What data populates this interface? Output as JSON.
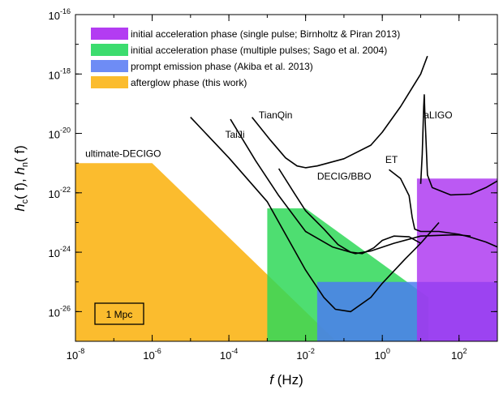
{
  "chart_data": {
    "type": "area",
    "xlabel": {
      "var": "f",
      "unit": " (Hz)"
    },
    "ylabel": {
      "a": "h",
      "a_sub": "c",
      "b": "h",
      "b_sub": "n",
      "arg": "( f)"
    },
    "x_scale": "log",
    "y_scale": "log",
    "xlim": [
      1e-08,
      1000
    ],
    "ylim": [
      1e-27,
      1e-16
    ],
    "x_ticks": [
      {
        "base": "10",
        "exp": "-8",
        "value": 1e-08
      },
      {
        "base": "10",
        "exp": "-6",
        "value": 1e-06
      },
      {
        "base": "10",
        "exp": "-4",
        "value": 0.0001
      },
      {
        "base": "10",
        "exp": "-2",
        "value": 0.01
      },
      {
        "base": "10",
        "exp": "0",
        "value": 1
      },
      {
        "base": "10",
        "exp": "2",
        "value": 100
      }
    ],
    "y_ticks": [
      {
        "base": "10",
        "exp": "-16",
        "value": 1e-16
      },
      {
        "base": "10",
        "exp": "-18",
        "value": 1e-18
      },
      {
        "base": "10",
        "exp": "-20",
        "value": 1e-20
      },
      {
        "base": "10",
        "exp": "-22",
        "value": 1e-22
      },
      {
        "base": "10",
        "exp": "-24",
        "value": 1e-24
      },
      {
        "base": "10",
        "exp": "-26",
        "value": 1e-26
      }
    ],
    "grid": false,
    "legend_position": "top-left",
    "legend": [
      {
        "label": "initial acceleration phase (single pulse; Birnholtz & Piran 2013)",
        "color": "#b33cf2"
      },
      {
        "label": "initial acceleration phase (multiple pulses; Sago et al. 2004)",
        "color": "#3cdc6e"
      },
      {
        "label": "prompt emission phase (Akiba et al. 2013)",
        "color": "#6e8cf5"
      },
      {
        "label": "afterglow phase (this work)",
        "color": "#fbbc2e"
      }
    ],
    "regions": [
      {
        "name": "afterglow phase (this work)",
        "color": "#fbbc2e",
        "opacity": 1.0,
        "points": [
          [
            1e-08,
            1e-27
          ],
          [
            1e-08,
            1e-21
          ],
          [
            1e-06,
            1e-21
          ],
          [
            0.063,
            1e-27
          ]
        ]
      },
      {
        "name": "initial acceleration phase (multiple pulses; Sago et al. 2004)",
        "color": "#2fd858",
        "opacity": 0.85,
        "points": [
          [
            0.001,
            1e-27
          ],
          [
            0.001,
            3e-23
          ],
          [
            0.01,
            3e-23
          ],
          [
            16,
            3e-26
          ],
          [
            16,
            1e-27
          ]
        ]
      },
      {
        "name": "prompt emission phase (Akiba et al. 2013)",
        "color": "#4b7df0",
        "opacity": 0.85,
        "points": [
          [
            0.02,
            1e-27
          ],
          [
            0.02,
            1e-25
          ],
          [
            1000,
            1e-25
          ],
          [
            1000,
            1e-27
          ]
        ]
      },
      {
        "name": "initial acceleration phase (single pulse; Birnholtz & Piran 2013)",
        "color": "#aa2ff0",
        "opacity": 0.8,
        "points": [
          [
            8,
            1e-27
          ],
          [
            8,
            3e-22
          ],
          [
            1000,
            3e-22
          ],
          [
            1000,
            1e-27
          ]
        ]
      }
    ],
    "series": [
      {
        "name": "ultimate-DECIGO",
        "label_at": [
          1.8e-08,
          1.6e-21
        ],
        "points": [
          [
            1e-05,
            3.5e-20
          ],
          [
            0.0001,
            1.5e-21
          ],
          [
            0.001,
            5e-23
          ],
          [
            0.01,
            2.5e-25
          ],
          [
            0.03,
            3e-26
          ],
          [
            0.06,
            1.2e-26
          ],
          [
            0.15,
            1e-26
          ],
          [
            0.5,
            3e-26
          ],
          [
            1,
            9e-26
          ],
          [
            4,
            6e-25
          ],
          [
            10,
            2e-24
          ],
          [
            30,
            1e-23
          ]
        ]
      },
      {
        "name": "TaiJi",
        "label_at": [
          8e-05,
          7e-21
        ],
        "points": [
          [
            0.00011,
            3e-20
          ],
          [
            0.0005,
            1.2e-21
          ],
          [
            0.002,
            8e-23
          ],
          [
            0.01,
            5e-24
          ],
          [
            0.05,
            1.5e-24
          ],
          [
            0.2,
            9e-25
          ],
          [
            0.5,
            1.1e-24
          ],
          [
            2,
            2e-24
          ],
          [
            10,
            3.5e-24
          ],
          [
            60,
            3.8e-24
          ],
          [
            100,
            3.8e-24
          ],
          [
            200,
            3.5e-24
          ]
        ]
      },
      {
        "name": "TianQin",
        "label_at": [
          0.0006,
          3.2e-20
        ],
        "points": [
          [
            0.0004,
            3.5e-20
          ],
          [
            0.0012,
            6e-21
          ],
          [
            0.003,
            1.5e-21
          ],
          [
            0.006,
            8e-22
          ],
          [
            0.01,
            7e-22
          ],
          [
            0.02,
            8e-22
          ],
          [
            0.1,
            1.4e-21
          ],
          [
            0.5,
            4e-21
          ],
          [
            1,
            1.1e-20
          ],
          [
            3,
            8e-20
          ],
          [
            10,
            1e-18
          ],
          [
            15,
            4e-18
          ]
        ]
      },
      {
        "name": "DECIG/BBO",
        "label_at": [
          0.02,
          2.8e-22
        ],
        "points": [
          [
            0.002,
            6.5e-22
          ],
          [
            0.005,
            1e-22
          ],
          [
            0.01,
            2.5e-23
          ],
          [
            0.03,
            6e-24
          ],
          [
            0.07,
            1.8e-24
          ],
          [
            0.15,
            1e-24
          ],
          [
            0.3,
            9e-25
          ],
          [
            0.6,
            1.4e-24
          ],
          [
            1,
            2.5e-24
          ],
          [
            2,
            3.5e-24
          ],
          [
            5,
            3.3e-24
          ],
          [
            10,
            2e-24
          ]
        ]
      },
      {
        "name": "ET",
        "label_at": [
          1.2,
          1e-21
        ],
        "points": [
          [
            1.5,
            6e-22
          ],
          [
            3,
            3e-22
          ],
          [
            5,
            8e-23
          ],
          [
            6,
            1.5e-23
          ],
          [
            7,
            6e-24
          ],
          [
            10,
            5e-24
          ],
          [
            30,
            5e-24
          ],
          [
            100,
            4e-24
          ],
          [
            200,
            3.2e-24
          ],
          [
            500,
            2.2e-24
          ],
          [
            1000,
            1.5e-24
          ]
        ]
      },
      {
        "name": "aLIGO",
        "label_at": [
          12,
          3.2e-20
        ],
        "points": [
          [
            10,
            2e-22
          ],
          [
            11,
            2e-21
          ],
          [
            12,
            8e-20
          ],
          [
            12.4,
            2e-19
          ],
          [
            12.8,
            6e-20
          ],
          [
            15,
            4e-22
          ],
          [
            20,
            1.5e-22
          ],
          [
            60,
            8.5e-23
          ],
          [
            200,
            9e-23
          ],
          [
            500,
            1.5e-22
          ],
          [
            1000,
            2.5e-22
          ]
        ]
      }
    ],
    "annotation": "1 Mpc"
  }
}
